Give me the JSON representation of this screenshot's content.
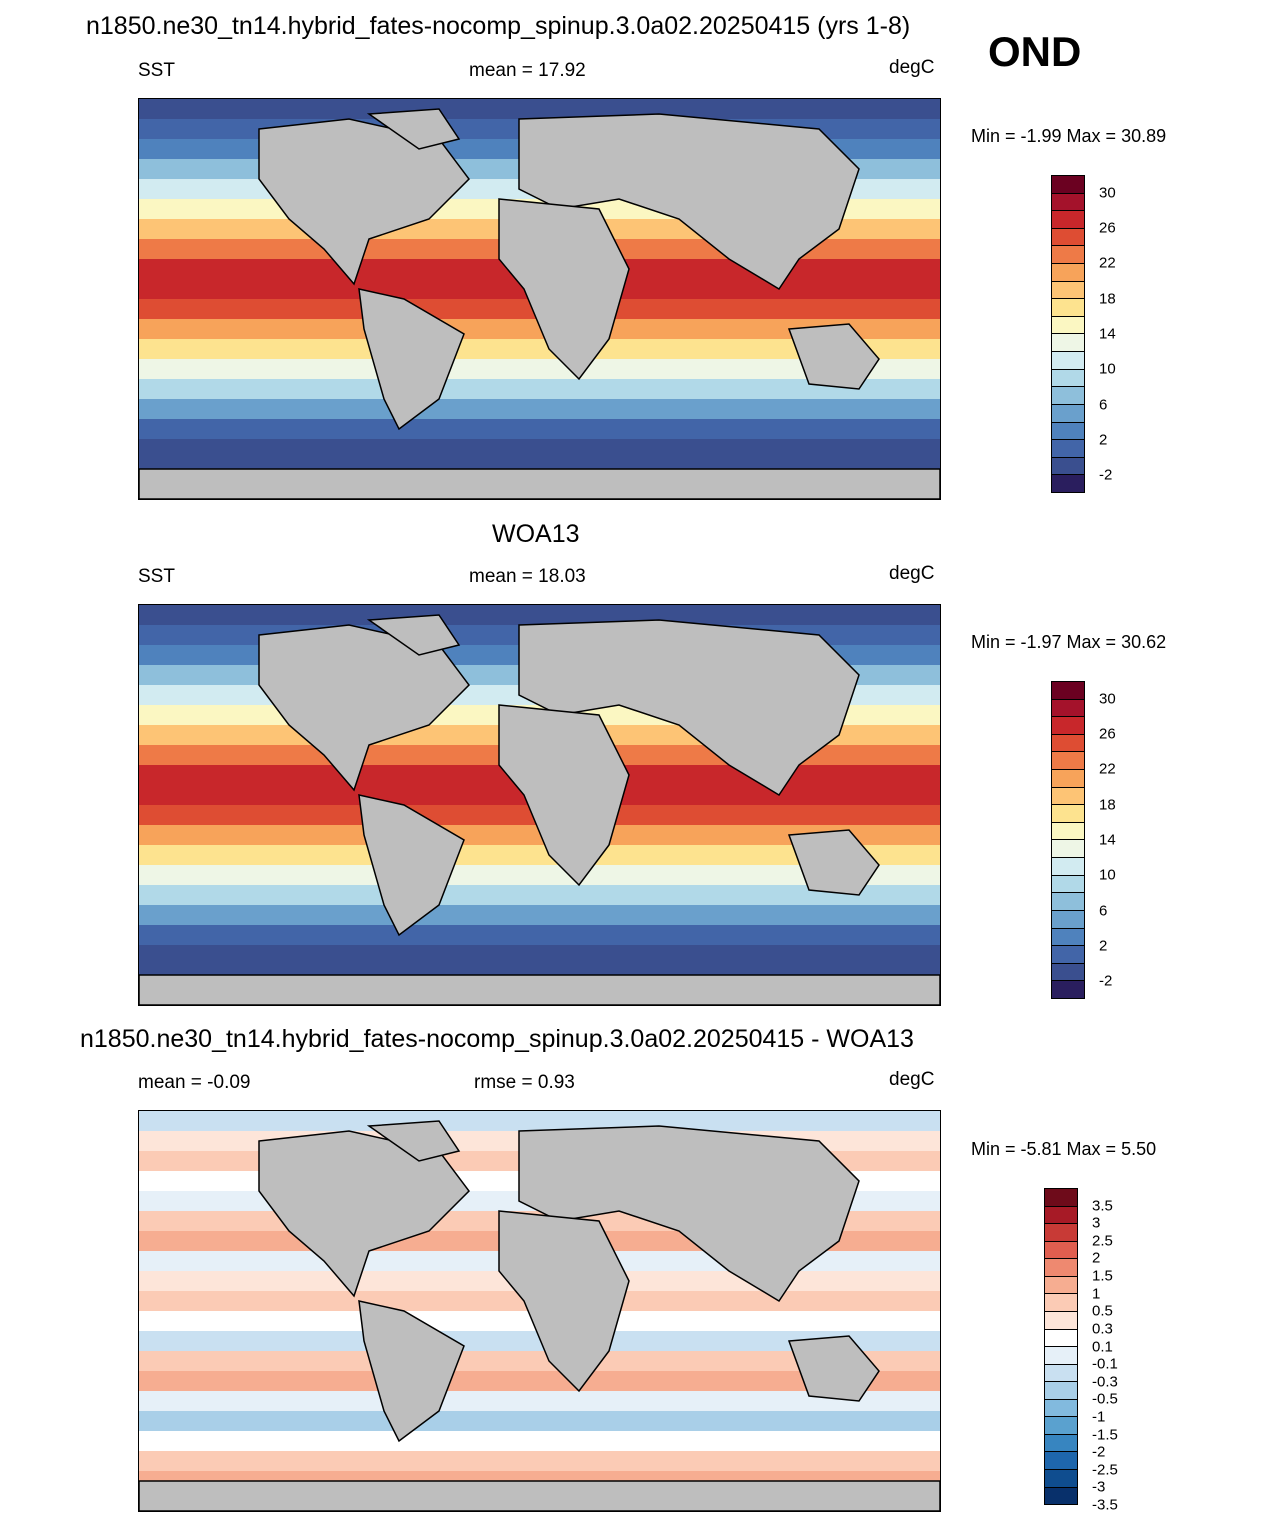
{
  "header": {
    "title": "n1850.ne30_tn14.hybrid_fates-nocomp_spinup.3.0a02.20250415 (yrs 1-8)",
    "season": "OND"
  },
  "colors": {
    "land": "#bebebe",
    "temp_scale": [
      "#2a1e5e",
      "#3a4f8f",
      "#4265a8",
      "#4f82bd",
      "#6aa0cc",
      "#8ebfdb",
      "#b1d9e8",
      "#d2ebf1",
      "#eef6e6",
      "#fbf7c2",
      "#fde38f",
      "#fdc475",
      "#f7a35a",
      "#ee7a47",
      "#de4d33",
      "#c8272b",
      "#a4122b",
      "#6b0121"
    ],
    "diff_scale": [
      "#08306b",
      "#0f4d8f",
      "#1e66ac",
      "#3785c0",
      "#5aa1cf",
      "#82bade",
      "#a9cfe8",
      "#c9e0f1",
      "#e6f0f8",
      "#ffffff",
      "#fde5d9",
      "#fbcbb5",
      "#f6ad91",
      "#ee8970",
      "#e05e4f",
      "#c83a36",
      "#a71a26",
      "#6e0b1a"
    ]
  },
  "panels": [
    {
      "id": "model",
      "heading": "",
      "left_label": "SST",
      "center_label": "mean =  17.92",
      "units": "degC",
      "minmax": "Min =  -1.99 Max =  30.89",
      "colorbar_ticks": [
        "30",
        "26",
        "22",
        "18",
        "14",
        "10",
        "6",
        "2",
        "-2"
      ]
    },
    {
      "id": "obs",
      "heading": "WOA13",
      "left_label": "SST",
      "center_label": "mean =  18.03",
      "units": "degC",
      "minmax": "Min =  -1.97 Max =  30.62",
      "colorbar_ticks": [
        "30",
        "26",
        "22",
        "18",
        "14",
        "10",
        "6",
        "2",
        "-2"
      ]
    },
    {
      "id": "diff",
      "heading": "n1850.ne30_tn14.hybrid_fates-nocomp_spinup.3.0a02.20250415 - WOA13",
      "left_label": "mean =  -0.09",
      "center_label": "rmse =   0.93",
      "units": "degC",
      "minmax": "Min =  -5.81 Max =   5.50",
      "colorbar_ticks": [
        "3.5",
        "3",
        "2.5",
        "2",
        "1.5",
        "1",
        "0.5",
        "0.3",
        "0.1",
        "-0.1",
        "-0.3",
        "-0.5",
        "-1",
        "-1.5",
        "-2",
        "-2.5",
        "-3",
        "-3.5"
      ]
    }
  ]
}
